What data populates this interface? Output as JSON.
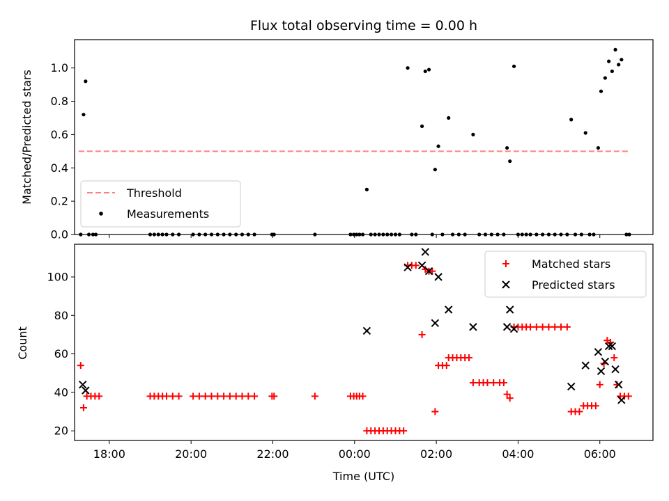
{
  "chart_data": [
    {
      "type": "scatter",
      "title": "Flux total observing time = 0.00 h",
      "xlabel": "",
      "ylabel": "Matched/Predicted stars",
      "xlim": [
        -6.85,
        7.3
      ],
      "ylim": [
        0,
        1.17
      ],
      "yticks": [
        0.0,
        0.2,
        0.4,
        0.6,
        0.8,
        1.0
      ],
      "ytick_labels": [
        "0.0",
        "0.2",
        "0.4",
        "0.6",
        "0.8",
        "1.0"
      ],
      "legend_position": "lower left",
      "series": [
        {
          "name": "Threshold",
          "kind": "dashed-line",
          "color": "#ff7f7f",
          "x": [
            -6.75,
            6.75
          ],
          "y": [
            0.5,
            0.5
          ]
        },
        {
          "name": "Measurements",
          "kind": "dot",
          "color": "#000000",
          "points": [
            [
              -6.7,
              0
            ],
            [
              -6.63,
              0.72
            ],
            [
              -6.58,
              0.92
            ],
            [
              -6.5,
              0
            ],
            [
              -6.4,
              0
            ],
            [
              -6.33,
              0
            ],
            [
              -5.0,
              0
            ],
            [
              -4.9,
              0
            ],
            [
              -4.8,
              0
            ],
            [
              -4.7,
              0
            ],
            [
              -4.6,
              0
            ],
            [
              -4.45,
              0
            ],
            [
              -4.3,
              0
            ],
            [
              -3.95,
              0
            ],
            [
              -3.8,
              0
            ],
            [
              -3.65,
              0
            ],
            [
              -3.5,
              0
            ],
            [
              -3.35,
              0
            ],
            [
              -3.2,
              0
            ],
            [
              -3.05,
              0
            ],
            [
              -2.9,
              0
            ],
            [
              -2.75,
              0
            ],
            [
              -2.6,
              0
            ],
            [
              -2.45,
              0
            ],
            [
              -2.02,
              0
            ],
            [
              -1.97,
              0
            ],
            [
              -0.97,
              0
            ],
            [
              -0.1,
              0
            ],
            [
              -0.02,
              0
            ],
            [
              0.05,
              0
            ],
            [
              0.12,
              0
            ],
            [
              0.2,
              0
            ],
            [
              0.3,
              0.27
            ],
            [
              0.4,
              0
            ],
            [
              0.5,
              0
            ],
            [
              0.6,
              0
            ],
            [
              0.7,
              0
            ],
            [
              0.8,
              0
            ],
            [
              0.9,
              0
            ],
            [
              1.0,
              0
            ],
            [
              1.1,
              0
            ],
            [
              1.3,
              1.0
            ],
            [
              1.4,
              0
            ],
            [
              1.5,
              0
            ],
            [
              1.65,
              0.65
            ],
            [
              1.73,
              0.98
            ],
            [
              1.82,
              0.99
            ],
            [
              1.9,
              0
            ],
            [
              1.97,
              0.39
            ],
            [
              2.05,
              0.53
            ],
            [
              2.15,
              0
            ],
            [
              2.3,
              0.7
            ],
            [
              2.4,
              0
            ],
            [
              2.55,
              0
            ],
            [
              2.7,
              0
            ],
            [
              2.9,
              0.6
            ],
            [
              3.05,
              0
            ],
            [
              3.2,
              0
            ],
            [
              3.35,
              0
            ],
            [
              3.5,
              0
            ],
            [
              3.65,
              0
            ],
            [
              3.73,
              0.52
            ],
            [
              3.8,
              0.44
            ],
            [
              3.9,
              1.01
            ],
            [
              4.0,
              0
            ],
            [
              4.1,
              0
            ],
            [
              4.2,
              0
            ],
            [
              4.3,
              0
            ],
            [
              4.45,
              0
            ],
            [
              4.6,
              0
            ],
            [
              4.75,
              0
            ],
            [
              4.9,
              0
            ],
            [
              5.05,
              0
            ],
            [
              5.2,
              0
            ],
            [
              5.3,
              0.69
            ],
            [
              5.4,
              0
            ],
            [
              5.55,
              0
            ],
            [
              5.65,
              0.61
            ],
            [
              5.75,
              0
            ],
            [
              5.85,
              0
            ],
            [
              5.96,
              0.52
            ],
            [
              6.03,
              0.86
            ],
            [
              6.13,
              0.94
            ],
            [
              6.22,
              1.04
            ],
            [
              6.3,
              0.98
            ],
            [
              6.38,
              1.11
            ],
            [
              6.46,
              1.02
            ],
            [
              6.53,
              1.05
            ],
            [
              6.65,
              0
            ],
            [
              6.72,
              0
            ]
          ]
        }
      ]
    },
    {
      "type": "scatter",
      "title": "",
      "xlabel": "Time (UTC)",
      "ylabel": "Count",
      "xlim": [
        -6.85,
        7.3
      ],
      "ylim": [
        15,
        117
      ],
      "yticks": [
        20,
        40,
        60,
        80,
        100
      ],
      "ytick_labels": [
        "20",
        "40",
        "60",
        "80",
        "100"
      ],
      "xticks": [
        -6,
        -4,
        -2,
        0,
        2,
        4,
        6
      ],
      "xtick_labels": [
        "18:00",
        "20:00",
        "22:00",
        "00:00",
        "02:00",
        "04:00",
        "06:00"
      ],
      "legend_position": "upper right",
      "series": [
        {
          "name": "Matched stars",
          "kind": "plus",
          "color": "#ff0000",
          "points": [
            [
              -6.7,
              54
            ],
            [
              -6.63,
              32
            ],
            [
              -6.55,
              38
            ],
            [
              -6.45,
              38
            ],
            [
              -6.35,
              38
            ],
            [
              -6.25,
              38
            ],
            [
              -5.0,
              38
            ],
            [
              -4.9,
              38
            ],
            [
              -4.8,
              38
            ],
            [
              -4.7,
              38
            ],
            [
              -4.6,
              38
            ],
            [
              -4.45,
              38
            ],
            [
              -4.3,
              38
            ],
            [
              -3.95,
              38
            ],
            [
              -3.8,
              38
            ],
            [
              -3.65,
              38
            ],
            [
              -3.5,
              38
            ],
            [
              -3.35,
              38
            ],
            [
              -3.2,
              38
            ],
            [
              -3.05,
              38
            ],
            [
              -2.9,
              38
            ],
            [
              -2.75,
              38
            ],
            [
              -2.6,
              38
            ],
            [
              -2.45,
              38
            ],
            [
              -2.02,
              38
            ],
            [
              -1.97,
              38
            ],
            [
              -0.97,
              38
            ],
            [
              -0.1,
              38
            ],
            [
              -0.02,
              38
            ],
            [
              0.05,
              38
            ],
            [
              0.12,
              38
            ],
            [
              0.2,
              38
            ],
            [
              0.3,
              20
            ],
            [
              0.4,
              20
            ],
            [
              0.5,
              20
            ],
            [
              0.6,
              20
            ],
            [
              0.7,
              20
            ],
            [
              0.8,
              20
            ],
            [
              0.9,
              20
            ],
            [
              1.0,
              20
            ],
            [
              1.1,
              20
            ],
            [
              1.2,
              20
            ],
            [
              1.3,
              106
            ],
            [
              1.4,
              106
            ],
            [
              1.5,
              106
            ],
            [
              1.65,
              70
            ],
            [
              1.73,
              104
            ],
            [
              1.82,
              103
            ],
            [
              1.9,
              103
            ],
            [
              1.97,
              30
            ],
            [
              2.05,
              54
            ],
            [
              2.15,
              54
            ],
            [
              2.25,
              54
            ],
            [
              2.3,
              58
            ],
            [
              2.4,
              58
            ],
            [
              2.5,
              58
            ],
            [
              2.6,
              58
            ],
            [
              2.7,
              58
            ],
            [
              2.8,
              58
            ],
            [
              2.9,
              45
            ],
            [
              3.05,
              45
            ],
            [
              3.15,
              45
            ],
            [
              3.25,
              45
            ],
            [
              3.4,
              45
            ],
            [
              3.55,
              45
            ],
            [
              3.65,
              45
            ],
            [
              3.73,
              39
            ],
            [
              3.8,
              37
            ],
            [
              3.9,
              74
            ],
            [
              4.0,
              74
            ],
            [
              4.1,
              74
            ],
            [
              4.2,
              74
            ],
            [
              4.3,
              74
            ],
            [
              4.45,
              74
            ],
            [
              4.6,
              74
            ],
            [
              4.75,
              74
            ],
            [
              4.9,
              74
            ],
            [
              5.05,
              74
            ],
            [
              5.2,
              74
            ],
            [
              5.3,
              30
            ],
            [
              5.4,
              30
            ],
            [
              5.5,
              30
            ],
            [
              5.6,
              33
            ],
            [
              5.7,
              33
            ],
            [
              5.8,
              33
            ],
            [
              5.9,
              33
            ],
            [
              6.0,
              44
            ],
            [
              6.1,
              55
            ],
            [
              6.18,
              67
            ],
            [
              6.26,
              66
            ],
            [
              6.35,
              58
            ],
            [
              6.42,
              44
            ],
            [
              6.5,
              38
            ],
            [
              6.6,
              38
            ],
            [
              6.7,
              38
            ]
          ]
        },
        {
          "name": "Predicted stars",
          "kind": "x",
          "color": "#000000",
          "points": [
            [
              -6.65,
              44
            ],
            [
              -6.58,
              41
            ],
            [
              0.3,
              72
            ],
            [
              1.3,
              105
            ],
            [
              1.65,
              106
            ],
            [
              1.73,
              113
            ],
            [
              1.82,
              103
            ],
            [
              2.05,
              100
            ],
            [
              1.97,
              76
            ],
            [
              2.3,
              83
            ],
            [
              2.9,
              74
            ],
            [
              3.73,
              74
            ],
            [
              3.8,
              83
            ],
            [
              3.9,
              73
            ],
            [
              5.3,
              43
            ],
            [
              5.65,
              54
            ],
            [
              5.96,
              61
            ],
            [
              6.03,
              51
            ],
            [
              6.13,
              56
            ],
            [
              6.22,
              64
            ],
            [
              6.3,
              64
            ],
            [
              6.38,
              52
            ],
            [
              6.46,
              44
            ],
            [
              6.53,
              36
            ]
          ]
        }
      ]
    }
  ]
}
